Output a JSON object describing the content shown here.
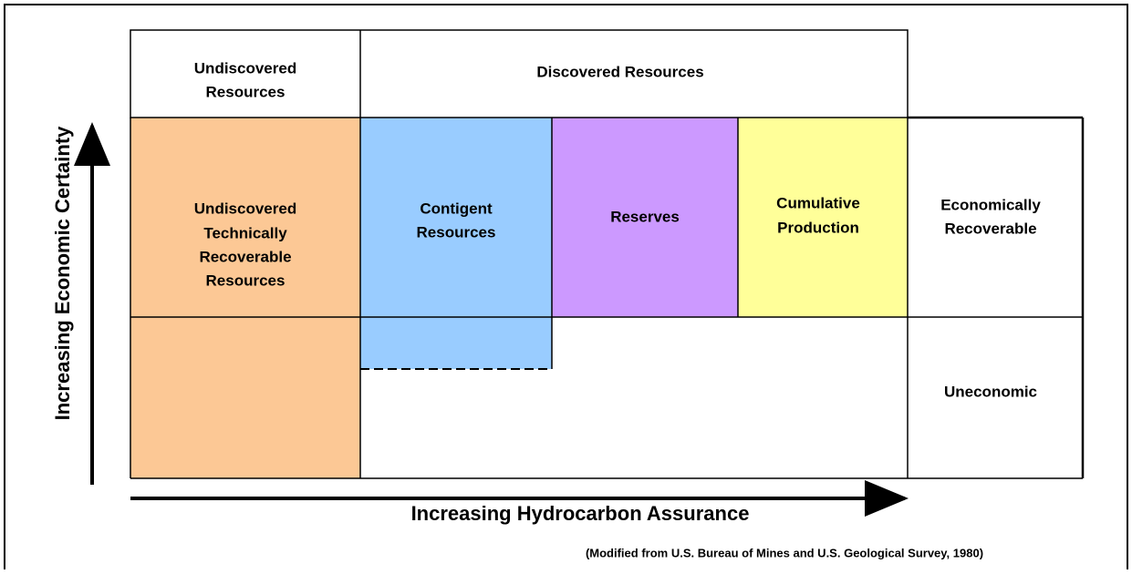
{
  "header": {
    "undiscovered": [
      "Undiscovered",
      "Resources"
    ],
    "discovered": "Discovered Resources"
  },
  "cells": {
    "undiscovered_trr": [
      "Undiscovered",
      "Technically",
      "Recoverable",
      "Resources"
    ],
    "contingent": [
      "Contigent",
      "Resources"
    ],
    "reserves": "Reserves",
    "cumulative": [
      "Cumulative",
      "Production"
    ]
  },
  "rows": {
    "economic": [
      "Economically",
      "Recoverable"
    ],
    "uneconomic": "Uneconomic"
  },
  "axes": {
    "y": "Increasing Economic Certainty",
    "x": "Increasing Hydrocarbon Assurance"
  },
  "source": "(Modified from U.S. Bureau of Mines and U.S. Geological Survey, 1980)"
}
